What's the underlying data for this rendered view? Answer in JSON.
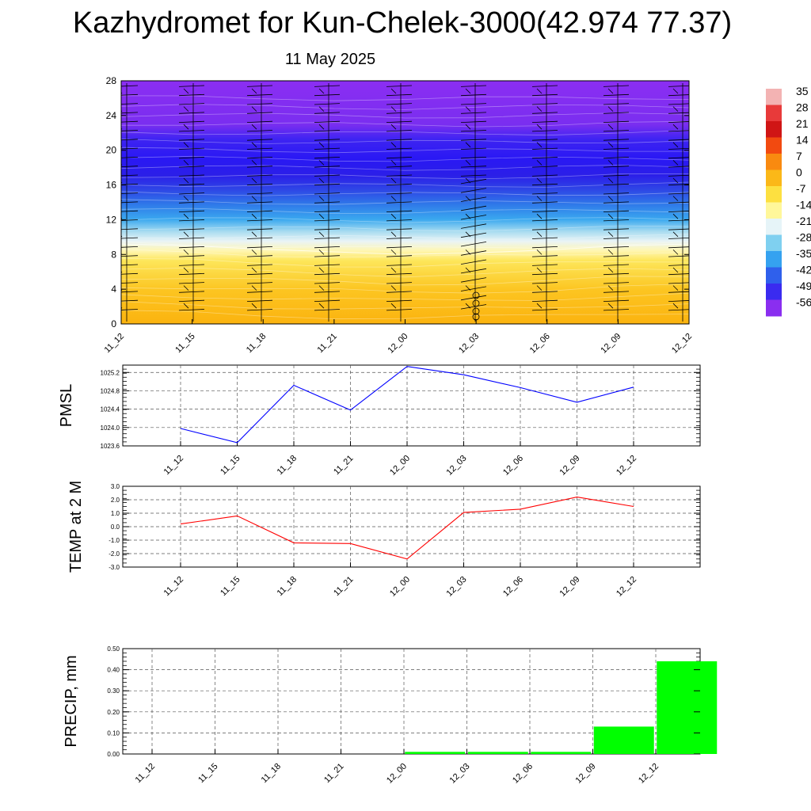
{
  "title": "Kazhydromet for Kun-Chelek-3000(42.974 77.37)",
  "subtitle": "11 May 2025",
  "time_labels": [
    "11_12",
    "11_15",
    "11_18",
    "11_21",
    "12_00",
    "12_03",
    "12_06",
    "12_09",
    "12_12"
  ],
  "colorbar": {
    "labels": [
      "35",
      "28",
      "21",
      "14",
      "7",
      "0",
      "-7",
      "-14",
      "-21",
      "-28",
      "-35",
      "-42",
      "-49",
      "-56"
    ],
    "colors": [
      "#f3b3b3",
      "#e83a3a",
      "#d01515",
      "#f24a10",
      "#f98a10",
      "#fbb818",
      "#fde040",
      "#fff79a",
      "#e6f4f8",
      "#7fd0f0",
      "#35a2f0",
      "#2f60ec",
      "#3a2bf0",
      "#8a2ef0"
    ]
  },
  "chart_data": [
    {
      "type": "heatmap",
      "title": "",
      "xlabel": "",
      "ylabel": "",
      "categories": [
        "11_12",
        "11_15",
        "11_18",
        "11_21",
        "12_00",
        "12_03",
        "12_06",
        "12_09",
        "12_12"
      ],
      "yticks": [
        0,
        4,
        8,
        12,
        16,
        20,
        24,
        28
      ],
      "ylim": [
        0,
        28
      ],
      "note_colors": "temperature by level; warm (yellow/orange) below ~8, cold (blue/purple) above",
      "freezing_level": [
        9.2,
        9.0,
        8.6,
        8.3,
        8.0,
        8.2,
        8.5,
        9.0,
        9.2
      ]
    },
    {
      "type": "line",
      "ylabel": "PMSL",
      "categories": [
        "11_12",
        "11_15",
        "11_18",
        "11_21",
        "12_00",
        "12_03",
        "12_06",
        "12_09",
        "12_12"
      ],
      "series": [
        {
          "values": [
            1023.98,
            1023.67,
            1024.92,
            1024.38,
            1025.33,
            1025.15,
            1024.87,
            1024.55,
            1024.88
          ],
          "color": "#0000ff"
        }
      ],
      "yticks": [
        "1023.6",
        "1024.0",
        "1024.4",
        "1024.8",
        "1025.2"
      ],
      "ylim": [
        1023.6,
        1025.36
      ]
    },
    {
      "type": "line",
      "ylabel": "TEMP at 2 M",
      "categories": [
        "11_12",
        "11_15",
        "11_18",
        "11_21",
        "12_00",
        "12_03",
        "12_06",
        "12_09",
        "12_12"
      ],
      "series": [
        {
          "values": [
            0.2,
            0.8,
            -1.2,
            -1.25,
            -2.4,
            1.05,
            1.3,
            2.2,
            1.5
          ],
          "color": "#ff0000"
        }
      ],
      "yticks": [
        "-3.0",
        "-2.0",
        "-1.0",
        "0.0",
        "1.0",
        "2.0",
        "3.0"
      ],
      "ylim": [
        -3,
        3
      ]
    },
    {
      "type": "bar",
      "ylabel": "PRECIP, mm",
      "categories": [
        "11_12",
        "11_15",
        "11_18",
        "11_21",
        "12_00",
        "12_03",
        "12_06",
        "12_09",
        "12_12"
      ],
      "values": [
        0,
        0,
        0,
        0,
        0.01,
        0.01,
        0.01,
        0.13,
        0.44
      ],
      "color": "#00ff00",
      "yticks": [
        "0.00",
        "0.10",
        "0.20",
        "0.30",
        "0.40",
        "0.50"
      ],
      "ylim": [
        0,
        0.5
      ]
    }
  ]
}
